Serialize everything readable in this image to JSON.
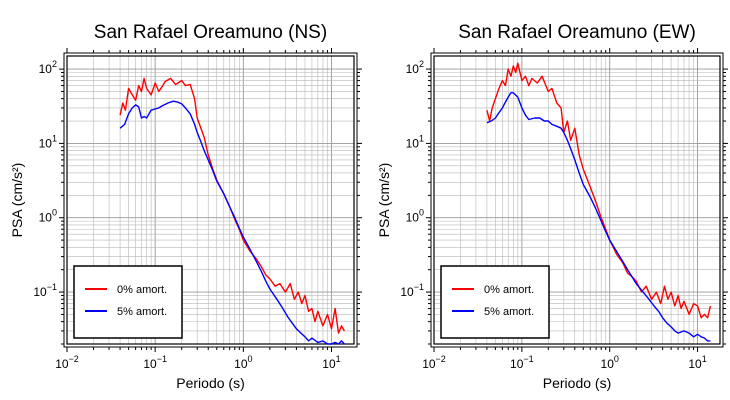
{
  "chart_data": [
    {
      "type": "line",
      "title": "San Rafael Oreamuno (NS)",
      "xlabel": "Periodo (s)",
      "ylabel": "PSA (cm/s²)",
      "xscale": "log",
      "yscale": "log",
      "xlim": [
        0.01,
        18
      ],
      "ylim": [
        0.02,
        150
      ],
      "grid": true,
      "legend_position": "bottom-left",
      "x_ticks": [
        {
          "value": 0.01,
          "base": "10",
          "exp": "−2"
        },
        {
          "value": 0.1,
          "base": "10",
          "exp": "−1"
        },
        {
          "value": 1,
          "base": "10",
          "exp": "0"
        },
        {
          "value": 10,
          "base": "10",
          "exp": "1"
        }
      ],
      "y_ticks": [
        {
          "value": 0.1,
          "base": "10",
          "exp": "−1"
        },
        {
          "value": 1,
          "base": "10",
          "exp": "0"
        },
        {
          "value": 10,
          "base": "10",
          "exp": "1"
        },
        {
          "value": 100,
          "base": "10",
          "exp": "2"
        }
      ],
      "series": [
        {
          "name": "0% amort.",
          "color": "#ff0000",
          "x": [
            0.04,
            0.043,
            0.046,
            0.05,
            0.055,
            0.06,
            0.065,
            0.07,
            0.075,
            0.08,
            0.09,
            0.1,
            0.11,
            0.12,
            0.13,
            0.15,
            0.17,
            0.2,
            0.22,
            0.25,
            0.28,
            0.3,
            0.33,
            0.36,
            0.4,
            0.45,
            0.5,
            0.6,
            0.7,
            0.8,
            0.9,
            1.0,
            1.2,
            1.4,
            1.6,
            1.8,
            2.0,
            2.3,
            2.6,
            3.0,
            3.4,
            3.8,
            4.2,
            4.6,
            5.0,
            5.5,
            6.0,
            6.5,
            7.0,
            8.0,
            9.0,
            10.0,
            11.0,
            12.0,
            13.0,
            14.0
          ],
          "y": [
            24,
            35,
            28,
            55,
            45,
            38,
            60,
            50,
            75,
            55,
            45,
            65,
            50,
            58,
            68,
            75,
            62,
            70,
            60,
            62,
            40,
            22,
            16,
            12,
            7,
            4.5,
            3.2,
            2.1,
            1.4,
            0.95,
            0.7,
            0.5,
            0.35,
            0.28,
            0.22,
            0.17,
            0.15,
            0.12,
            0.13,
            0.1,
            0.13,
            0.08,
            0.1,
            0.07,
            0.09,
            0.055,
            0.06,
            0.04,
            0.055,
            0.035,
            0.05,
            0.032,
            0.06,
            0.028,
            0.035,
            0.03
          ]
        },
        {
          "name": "5% amort.",
          "color": "#0000ff",
          "x": [
            0.04,
            0.045,
            0.05,
            0.055,
            0.06,
            0.065,
            0.07,
            0.075,
            0.08,
            0.09,
            0.1,
            0.11,
            0.12,
            0.14,
            0.16,
            0.18,
            0.2,
            0.22,
            0.25,
            0.28,
            0.3,
            0.33,
            0.36,
            0.4,
            0.45,
            0.5,
            0.6,
            0.7,
            0.8,
            0.9,
            1.0,
            1.2,
            1.4,
            1.6,
            1.8,
            2.0,
            2.4,
            2.8,
            3.2,
            3.6,
            4.0,
            4.5,
            5.0,
            5.5,
            6.0,
            7.0,
            8.0,
            9.0,
            10.0,
            11.0,
            12.0,
            13.0,
            14.0
          ],
          "y": [
            16,
            18,
            25,
            30,
            33,
            31,
            22,
            23,
            22,
            28,
            29,
            30,
            32,
            35,
            37,
            36,
            34,
            30,
            25,
            18,
            14,
            10.5,
            8,
            6,
            4.3,
            3.1,
            2.1,
            1.4,
            1.0,
            0.72,
            0.55,
            0.37,
            0.26,
            0.19,
            0.14,
            0.11,
            0.08,
            0.06,
            0.046,
            0.038,
            0.032,
            0.028,
            0.025,
            0.022,
            0.024,
            0.021,
            0.022,
            0.02,
            0.02,
            0.021,
            0.02,
            0.022,
            0.02
          ]
        }
      ]
    },
    {
      "type": "line",
      "title": "San Rafael Oreamuno (EW)",
      "xlabel": "Periodo (s)",
      "ylabel": "PSA (cm/s²)",
      "xscale": "log",
      "yscale": "log",
      "xlim": [
        0.01,
        18
      ],
      "ylim": [
        0.02,
        150
      ],
      "grid": true,
      "legend_position": "bottom-left",
      "x_ticks": [
        {
          "value": 0.01,
          "base": "10",
          "exp": "−2"
        },
        {
          "value": 0.1,
          "base": "10",
          "exp": "−1"
        },
        {
          "value": 1,
          "base": "10",
          "exp": "0"
        },
        {
          "value": 10,
          "base": "10",
          "exp": "1"
        }
      ],
      "y_ticks": [
        {
          "value": 0.1,
          "base": "10",
          "exp": "−1"
        },
        {
          "value": 1,
          "base": "10",
          "exp": "0"
        },
        {
          "value": 10,
          "base": "10",
          "exp": "1"
        },
        {
          "value": 100,
          "base": "10",
          "exp": "2"
        }
      ],
      "series": [
        {
          "name": "0% amort.",
          "color": "#ff0000",
          "x": [
            0.04,
            0.043,
            0.046,
            0.05,
            0.055,
            0.06,
            0.065,
            0.07,
            0.075,
            0.08,
            0.085,
            0.09,
            0.1,
            0.11,
            0.12,
            0.13,
            0.15,
            0.17,
            0.2,
            0.22,
            0.25,
            0.28,
            0.3,
            0.33,
            0.36,
            0.4,
            0.45,
            0.5,
            0.6,
            0.7,
            0.8,
            0.9,
            1.0,
            1.2,
            1.4,
            1.6,
            1.8,
            2.0,
            2.3,
            2.6,
            3.0,
            3.4,
            3.8,
            4.2,
            4.6,
            5.0,
            5.5,
            6.0,
            6.5,
            7.0,
            8.0,
            9.0,
            10.0,
            11.0,
            12.0,
            13.0,
            14.0
          ],
          "y": [
            28,
            20,
            30,
            40,
            55,
            70,
            60,
            100,
            80,
            110,
            90,
            120,
            70,
            80,
            60,
            75,
            65,
            80,
            50,
            55,
            35,
            30,
            14,
            20,
            11,
            16,
            7,
            4.5,
            2.6,
            1.6,
            1.0,
            0.7,
            0.5,
            0.32,
            0.25,
            0.18,
            0.16,
            0.14,
            0.1,
            0.12,
            0.08,
            0.1,
            0.07,
            0.12,
            0.08,
            0.1,
            0.065,
            0.09,
            0.06,
            0.075,
            0.05,
            0.07,
            0.065,
            0.045,
            0.05,
            0.045,
            0.065
          ]
        },
        {
          "name": "5% amort.",
          "color": "#0000ff",
          "x": [
            0.04,
            0.045,
            0.05,
            0.055,
            0.06,
            0.065,
            0.07,
            0.075,
            0.08,
            0.09,
            0.1,
            0.11,
            0.12,
            0.14,
            0.16,
            0.18,
            0.2,
            0.22,
            0.25,
            0.28,
            0.3,
            0.33,
            0.36,
            0.4,
            0.45,
            0.5,
            0.6,
            0.7,
            0.8,
            0.9,
            1.0,
            1.2,
            1.4,
            1.6,
            1.8,
            2.0,
            2.4,
            2.8,
            3.2,
            3.6,
            4.0,
            4.5,
            5.0,
            5.5,
            6.0,
            7.0,
            8.0,
            9.0,
            10.0,
            11.0,
            12.0,
            13.0,
            14.0
          ],
          "y": [
            19,
            20,
            22,
            26,
            30,
            36,
            42,
            48,
            48,
            42,
            30,
            24,
            21,
            22,
            22,
            20,
            20,
            18,
            17,
            16,
            14,
            11,
            8.5,
            6,
            4,
            2.8,
            1.9,
            1.3,
            0.9,
            0.65,
            0.5,
            0.35,
            0.26,
            0.2,
            0.16,
            0.13,
            0.1,
            0.08,
            0.065,
            0.055,
            0.045,
            0.038,
            0.034,
            0.03,
            0.028,
            0.03,
            0.028,
            0.025,
            0.027,
            0.025,
            0.024,
            0.022,
            0.022
          ]
        }
      ]
    }
  ]
}
